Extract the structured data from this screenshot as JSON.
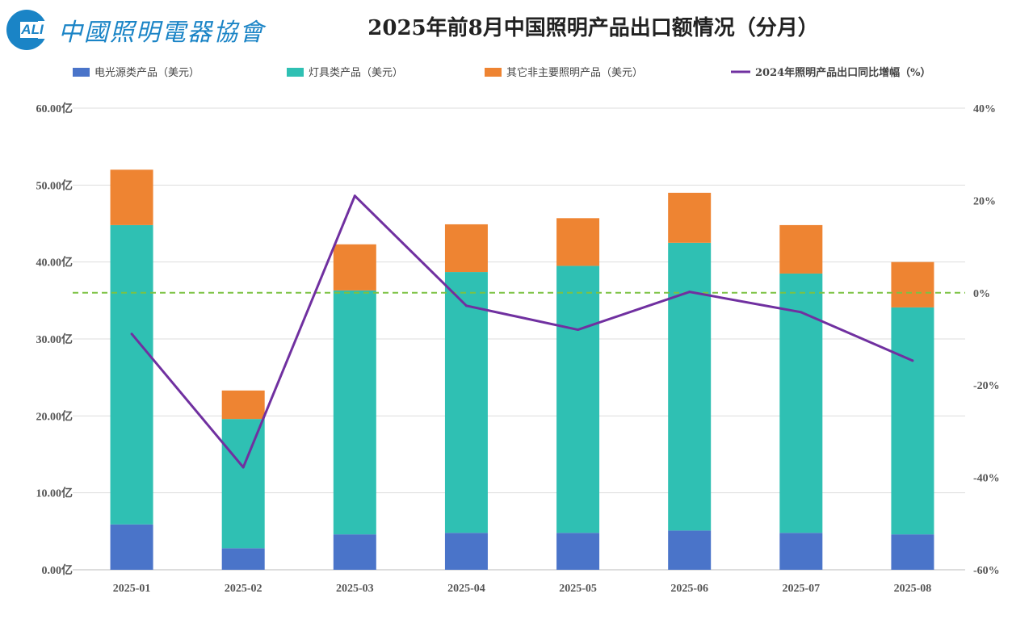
{
  "logo": {
    "mark": "ALI",
    "text": "中國照明電器協會"
  },
  "chart_data": {
    "type": "bar",
    "stacked": true,
    "title": "2025年前8月中国照明产品出口额情况（分月）",
    "categories": [
      "2025-01",
      "2025-02",
      "2025-03",
      "2025-04",
      "2025-05",
      "2025-06",
      "2025-07",
      "2025-08"
    ],
    "series": [
      {
        "name": "电光源类产品（美元）",
        "color": "#4a74c9",
        "axis": "left",
        "values": [
          5.9,
          2.8,
          4.6,
          4.8,
          4.8,
          5.1,
          4.8,
          4.6
        ]
      },
      {
        "name": "灯具类产品（美元）",
        "color": "#2fc0b3",
        "axis": "left",
        "values": [
          38.9,
          16.8,
          31.7,
          33.9,
          34.7,
          37.4,
          33.7,
          29.5
        ]
      },
      {
        "name": "其它非主要照明产品（美元）",
        "color": "#ee8432",
        "axis": "left",
        "values": [
          7.2,
          3.7,
          6.0,
          6.2,
          6.2,
          6.5,
          6.3,
          5.9
        ]
      },
      {
        "name": "2024年照明产品出口同比增幅（%）",
        "type": "line",
        "color": "#7030a0",
        "axis": "right",
        "values": [
          -8.9,
          -37.8,
          21.0,
          -2.8,
          -8.0,
          0.2,
          -4.2,
          -14.7
        ]
      }
    ],
    "reference_line": {
      "axis": "right",
      "value": 0,
      "style": "dashed",
      "color": "#7cc242"
    },
    "ylim": [
      0,
      60
    ],
    "yticks": [
      "0.00亿",
      "10.00亿",
      "20.00亿",
      "30.00亿",
      "40.00亿",
      "50.00亿",
      "60.00亿"
    ],
    "y2lim": [
      -60,
      40
    ],
    "y2ticks": [
      "-60%",
      "-40%",
      "-20%",
      "0%",
      "20%",
      "40%"
    ],
    "grid": true,
    "legend": "top"
  }
}
